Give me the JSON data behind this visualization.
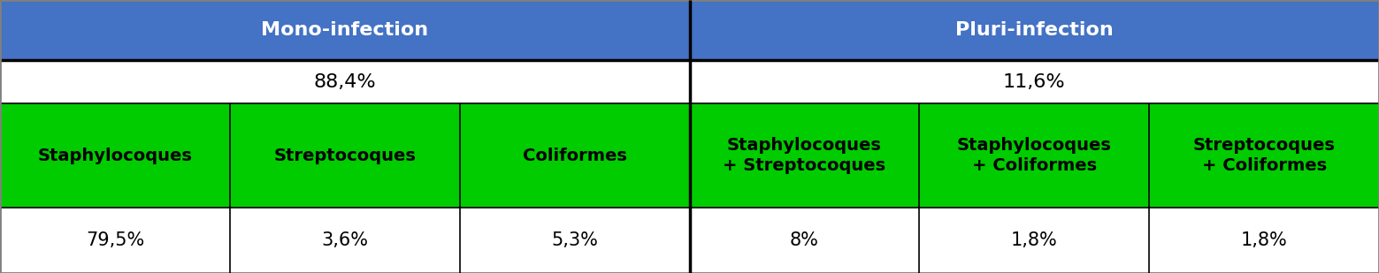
{
  "fig_width": 15.59,
  "fig_height": 3.09,
  "header_row": [
    "Mono-infection",
    "Pluri-infection"
  ],
  "header_spans": [
    3,
    3
  ],
  "header_bg": "#4472C4",
  "header_text_color": "#FFFFFF",
  "pct_row": [
    "88,4%",
    "11,6%"
  ],
  "pct_spans": [
    3,
    3
  ],
  "pct_bg": "#FFFFFF",
  "pct_text_color": "#000000",
  "label_row": [
    "Staphylocoques",
    "Streptocoques",
    "Coliformes",
    "Staphylocoques\n+ Streptocoques",
    "Staphylocoques\n+ Coliformes",
    "Streptocoques\n+ Coliformes"
  ],
  "label_bg": "#00CC00",
  "label_text_color": "#000000",
  "value_row": [
    "79,5%",
    "3,6%",
    "5,3%",
    "8%",
    "1,8%",
    "1,8%"
  ],
  "value_bg": "#FFFFFF",
  "value_text_color": "#000000",
  "n_cols": 6,
  "border_color": "#000000",
  "divider_col": 3,
  "outer_border_color": "#808080",
  "header_font_size": 16,
  "pct_font_size": 16,
  "label_font_size": 14,
  "value_font_size": 15
}
